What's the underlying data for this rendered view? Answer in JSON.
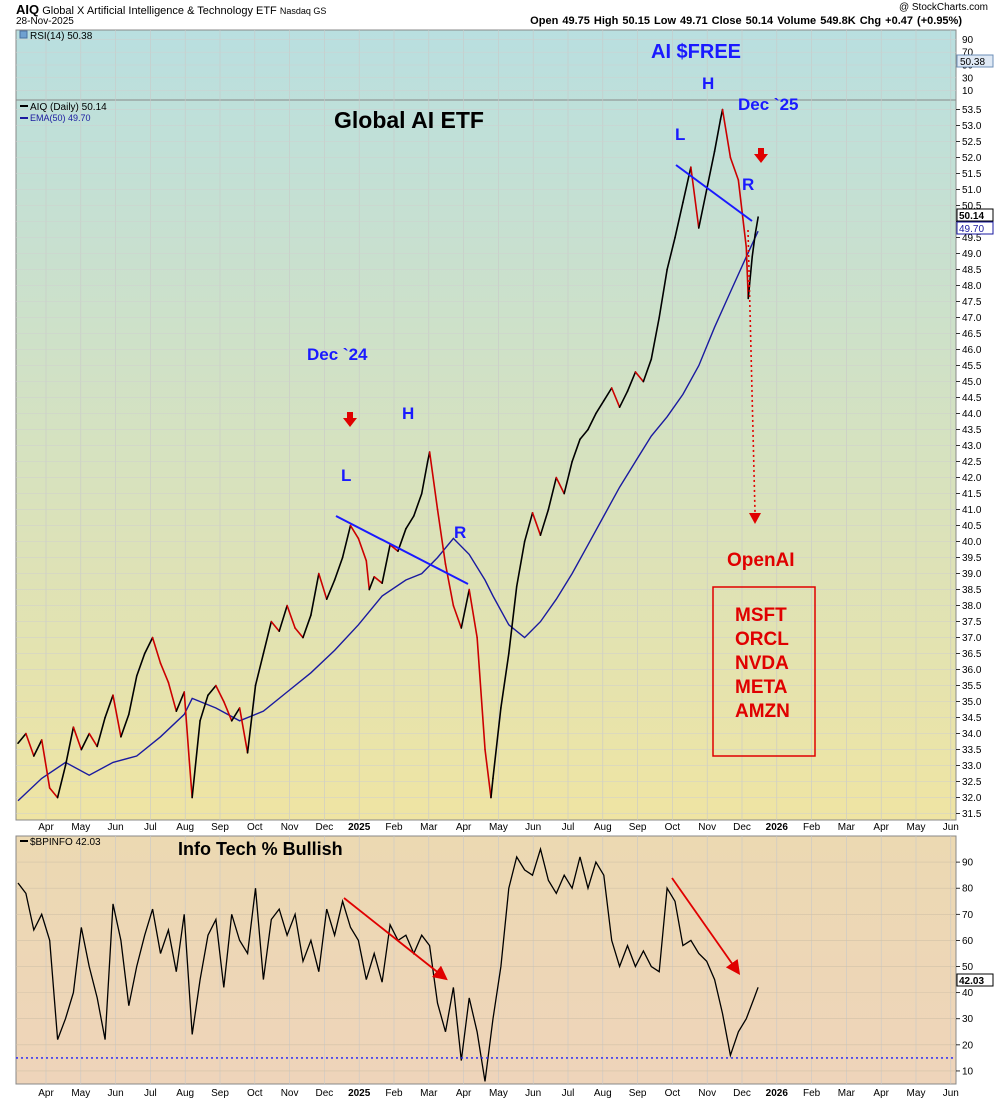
{
  "header": {
    "symbol": "AIQ",
    "name": "Global X Artificial Intelligence & Technology ETF",
    "exchange": "Nasdaq GS",
    "date": "28-Nov-2025",
    "watermark": "@ StockCharts.com",
    "stats": "Open 49.75  High 50.15  Low 49.71  Close 50.14  Volume 549.8K  Chg +0.47 (+0.95%)"
  },
  "colors": {
    "price": "#000000",
    "price_down": "#cc0000",
    "ema": "#1a1aa0",
    "blue_text": "#1a1aff",
    "red": "#e00000",
    "bg_top": "#b9dfe0",
    "bg_bottom": "#efe4a3",
    "bg_lower_top": "#ecd9b2",
    "bg_lower_bottom": "#eed4ba"
  },
  "chart_data": [
    {
      "type": "line",
      "panel": "rsi-strip",
      "legend": "RSI(14) 50.38",
      "last_value": 50.38,
      "y_ticks": [
        90,
        70,
        50,
        30,
        10
      ]
    },
    {
      "type": "line",
      "panel": "price",
      "legend": [
        "AIQ (Daily) 50.14",
        "EMA(50) 49.70"
      ],
      "title": "Global AI ETF",
      "x_labels": [
        "Apr",
        "May",
        "Jun",
        "Jul",
        "Aug",
        "Sep",
        "Oct",
        "Nov",
        "Dec",
        "2025",
        "Feb",
        "Mar",
        "Apr",
        "May",
        "Jun",
        "Jul",
        "Aug",
        "Sep",
        "Oct",
        "Nov",
        "Dec",
        "2026",
        "Feb",
        "Mar",
        "Apr",
        "May",
        "Jun"
      ],
      "ylim": [
        31.3,
        53.8
      ],
      "y_ticks": [
        31.5,
        32.0,
        32.5,
        33.0,
        33.5,
        34.0,
        34.5,
        35.0,
        35.5,
        36.0,
        36.5,
        37.0,
        37.5,
        38.0,
        38.5,
        39.0,
        39.5,
        40.0,
        40.5,
        41.0,
        41.5,
        42.0,
        42.5,
        43.0,
        43.5,
        44.0,
        44.5,
        45.0,
        45.5,
        46.0,
        46.5,
        47.0,
        47.5,
        48.0,
        48.5,
        49.0,
        49.5,
        50.0,
        50.5,
        51.0,
        51.5,
        52.0,
        52.5,
        53.0,
        53.5
      ],
      "series": [
        {
          "name": "AIQ (Daily)",
          "x": [
            0,
            8,
            16,
            24,
            32,
            40,
            48,
            56,
            64,
            72,
            80,
            88,
            96,
            104,
            112,
            120,
            128,
            136,
            144,
            152,
            160,
            168,
            173,
            176,
            184,
            192,
            200,
            208,
            216,
            224,
            232,
            240,
            248,
            256,
            264,
            272,
            280,
            288,
            296,
            304,
            312,
            320,
            328,
            336,
            344,
            352,
            355,
            360,
            368,
            376,
            384,
            392,
            400,
            408,
            414,
            416,
            424,
            432,
            440,
            448,
            456,
            464,
            472,
            478,
            480,
            488,
            496,
            504,
            512,
            520,
            528,
            536,
            544,
            552,
            560,
            568,
            576,
            584,
            592,
            600,
            608,
            616,
            624,
            632,
            640,
            648,
            656,
            664,
            672,
            680,
            688,
            696,
            704,
            710,
            712,
            720,
            728,
            736,
            738,
            742,
            745,
            748
          ],
          "values": [
            33.7,
            34.0,
            33.3,
            33.8,
            32.3,
            32.0,
            33.0,
            34.2,
            33.5,
            34.0,
            33.6,
            34.5,
            35.2,
            33.9,
            34.6,
            35.8,
            36.5,
            37.0,
            36.2,
            35.6,
            34.7,
            35.3,
            33.2,
            32.0,
            34.4,
            35.2,
            35.5,
            35.0,
            34.4,
            34.8,
            33.4,
            35.5,
            36.5,
            37.5,
            37.2,
            38.0,
            37.3,
            37.0,
            37.7,
            39.0,
            38.2,
            38.8,
            39.5,
            40.5,
            40.1,
            39.4,
            38.5,
            38.9,
            38.7,
            39.9,
            39.7,
            40.4,
            40.8,
            41.5,
            42.5,
            42.8,
            41.0,
            39.3,
            38.0,
            37.3,
            38.5,
            37.0,
            33.5,
            32.0,
            32.6,
            34.8,
            36.5,
            38.6,
            40.0,
            40.9,
            40.2,
            41.0,
            42.0,
            41.5,
            42.5,
            43.2,
            43.5,
            44.0,
            44.4,
            44.8,
            44.2,
            44.7,
            45.3,
            45.0,
            45.7,
            47.0,
            48.5,
            49.5,
            50.6,
            51.7,
            49.8,
            51.0,
            52.2,
            53.2,
            53.5,
            52.0,
            51.3,
            49.2,
            47.6,
            48.9,
            49.6,
            50.14
          ]
        },
        {
          "name": "EMA(50)",
          "x": [
            0,
            24,
            48,
            72,
            96,
            120,
            144,
            168,
            176,
            200,
            224,
            248,
            272,
            296,
            320,
            344,
            368,
            392,
            408,
            424,
            440,
            456,
            472,
            480,
            496,
            512,
            528,
            544,
            560,
            576,
            592,
            608,
            624,
            640,
            656,
            672,
            688,
            704,
            720,
            736,
            748
          ],
          "values": [
            31.9,
            32.6,
            33.1,
            32.7,
            33.1,
            33.3,
            33.9,
            34.6,
            35.1,
            34.8,
            34.4,
            34.7,
            35.3,
            35.9,
            36.6,
            37.4,
            38.3,
            38.8,
            39.0,
            39.5,
            40.1,
            39.6,
            38.8,
            38.3,
            37.4,
            37.0,
            37.5,
            38.2,
            39.0,
            39.9,
            40.8,
            41.7,
            42.5,
            43.3,
            43.9,
            44.6,
            45.5,
            46.7,
            47.8,
            48.9,
            49.7
          ]
        }
      ],
      "annotations": [
        "AI $FREE",
        "Dec `24",
        "Dec `25",
        "L",
        "H",
        "R",
        "OpenAI",
        "MSFT",
        "ORCL",
        "NVDA",
        "META",
        "AMZN"
      ]
    },
    {
      "type": "line",
      "panel": "lower",
      "legend": "$BPINFO 42.03",
      "title": "Info Tech % Bullish",
      "x_labels": [
        "Apr",
        "May",
        "Jun",
        "Jul",
        "Aug",
        "Sep",
        "Oct",
        "Nov",
        "Dec",
        "2025",
        "Feb",
        "Mar",
        "Apr",
        "May",
        "Jun",
        "Jul",
        "Aug",
        "Sep",
        "Oct",
        "Nov",
        "Dec",
        "2026",
        "Feb",
        "Mar",
        "Apr",
        "May",
        "Jun"
      ],
      "ylim": [
        5,
        100
      ],
      "y_ticks": [
        90,
        80,
        70,
        60,
        50,
        40,
        30,
        20,
        10
      ],
      "reference_line": 15,
      "series": [
        {
          "name": "$BPINFO",
          "x": [
            0,
            8,
            16,
            24,
            32,
            40,
            48,
            56,
            64,
            72,
            80,
            88,
            96,
            104,
            112,
            120,
            128,
            136,
            144,
            152,
            160,
            168,
            176,
            184,
            192,
            200,
            208,
            216,
            224,
            232,
            240,
            248,
            256,
            264,
            272,
            280,
            288,
            296,
            304,
            312,
            320,
            328,
            336,
            344,
            352,
            360,
            368,
            376,
            384,
            392,
            400,
            408,
            416,
            424,
            432,
            440,
            448,
            456,
            464,
            472,
            480,
            488,
            496,
            504,
            512,
            520,
            528,
            536,
            544,
            552,
            560,
            568,
            576,
            584,
            592,
            600,
            608,
            616,
            624,
            632,
            640,
            648,
            656,
            664,
            672,
            680,
            688,
            696,
            704,
            712,
            720,
            728,
            736,
            744,
            748
          ],
          "values": [
            82,
            78,
            64,
            70,
            60,
            22,
            30,
            40,
            65,
            50,
            38,
            22,
            74,
            60,
            35,
            50,
            62,
            72,
            55,
            64,
            48,
            70,
            24,
            45,
            62,
            68,
            42,
            70,
            60,
            55,
            80,
            45,
            68,
            72,
            62,
            70,
            52,
            60,
            48,
            72,
            62,
            75,
            65,
            60,
            45,
            55,
            44,
            66,
            60,
            62,
            55,
            62,
            58,
            36,
            25,
            42,
            14,
            38,
            25,
            6,
            30,
            50,
            80,
            92,
            87,
            85,
            95,
            83,
            78,
            85,
            80,
            92,
            80,
            90,
            85,
            60,
            50,
            58,
            50,
            56,
            50,
            48,
            80,
            75,
            58,
            60,
            55,
            52,
            45,
            32,
            16,
            25,
            30,
            38,
            42.03
          ]
        }
      ],
      "annotations": [
        "Info Tech % Bullish"
      ]
    }
  ]
}
